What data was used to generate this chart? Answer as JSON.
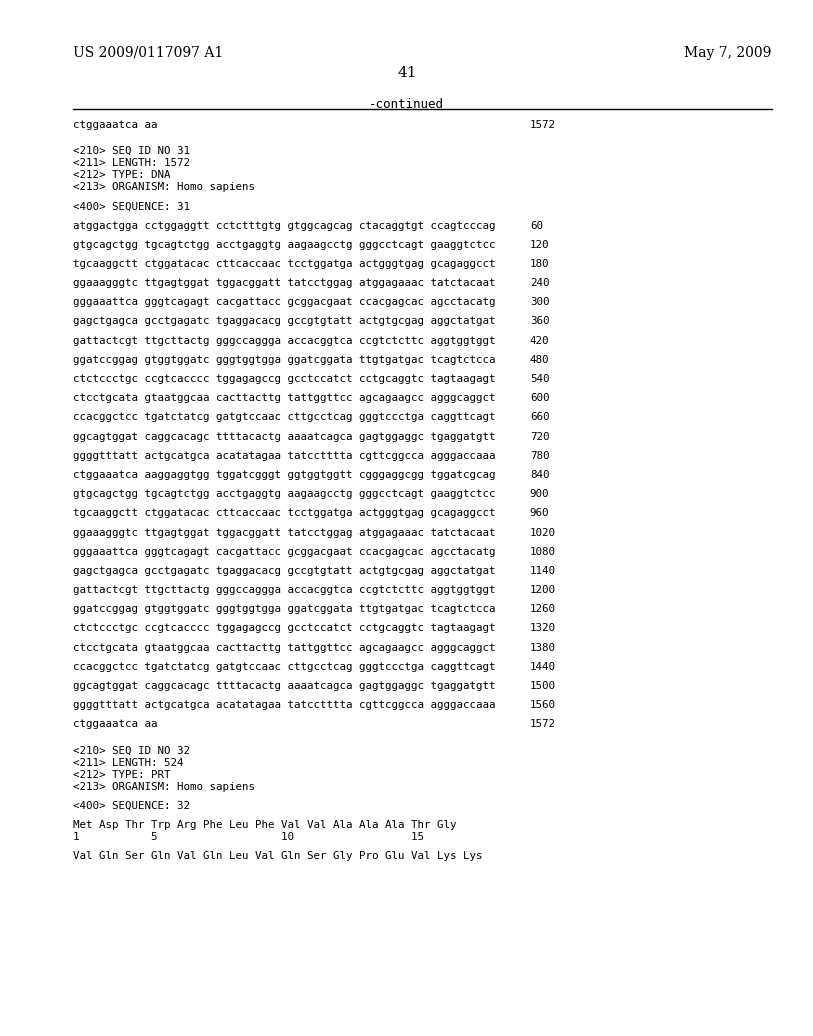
{
  "header_left": "US 2009/0117097 A1",
  "header_right": "May 7, 2009",
  "page_number": "41",
  "continued_label": "-continued",
  "background_color": "#ffffff",
  "text_color": "#000000",
  "lines": [
    {
      "text": "ctggaaatca aa",
      "num": "1572",
      "type": "seq"
    },
    {
      "text": "",
      "type": "blank"
    },
    {
      "text": "",
      "type": "blank"
    },
    {
      "text": "<210> SEQ ID NO 31",
      "type": "meta"
    },
    {
      "text": "<211> LENGTH: 1572",
      "type": "meta"
    },
    {
      "text": "<212> TYPE: DNA",
      "type": "meta"
    },
    {
      "text": "<213> ORGANISM: Homo sapiens",
      "type": "meta"
    },
    {
      "text": "",
      "type": "blank"
    },
    {
      "text": "<400> SEQUENCE: 31",
      "type": "meta"
    },
    {
      "text": "",
      "type": "blank"
    },
    {
      "text": "atggactgga cctggaggtt cctctttgtg gtggcagcag ctacaggtgt ccagtcccag",
      "num": "60",
      "type": "seq"
    },
    {
      "text": "",
      "type": "blank"
    },
    {
      "text": "gtgcagctgg tgcagtctgg acctgaggtg aagaagcctg gggcctcagt gaaggtctcc",
      "num": "120",
      "type": "seq"
    },
    {
      "text": "",
      "type": "blank"
    },
    {
      "text": "tgcaaggctt ctggatacac cttcaccaac tcctggatga actgggtgag gcagaggcct",
      "num": "180",
      "type": "seq"
    },
    {
      "text": "",
      "type": "blank"
    },
    {
      "text": "ggaaagggtc ttgagtggat tggacggatt tatcctggag atggagaaac tatctacaat",
      "num": "240",
      "type": "seq"
    },
    {
      "text": "",
      "type": "blank"
    },
    {
      "text": "gggaaattca gggtcagagt cacgattacc gcggacgaat ccacgagcac agcctacatg",
      "num": "300",
      "type": "seq"
    },
    {
      "text": "",
      "type": "blank"
    },
    {
      "text": "gagctgagca gcctgagatc tgaggacacg gccgtgtatt actgtgcgag aggctatgat",
      "num": "360",
      "type": "seq"
    },
    {
      "text": "",
      "type": "blank"
    },
    {
      "text": "gattactcgt ttgcttactg gggccaggga accacggtca ccgtctcttc aggtggtggt",
      "num": "420",
      "type": "seq"
    },
    {
      "text": "",
      "type": "blank"
    },
    {
      "text": "ggatccggag gtggtggatc gggtggtgga ggatcggata ttgtgatgac tcagtctcca",
      "num": "480",
      "type": "seq"
    },
    {
      "text": "",
      "type": "blank"
    },
    {
      "text": "ctctccctgc ccgtcacccc tggagagccg gcctccatct cctgcaggtc tagtaagagt",
      "num": "540",
      "type": "seq"
    },
    {
      "text": "",
      "type": "blank"
    },
    {
      "text": "ctcctgcata gtaatggcaa cacttacttg tattggttcc agcagaagcc agggcaggct",
      "num": "600",
      "type": "seq"
    },
    {
      "text": "",
      "type": "blank"
    },
    {
      "text": "ccacggctcc tgatctatcg gatgtccaac cttgcctcag gggtccctga caggttcagt",
      "num": "660",
      "type": "seq"
    },
    {
      "text": "",
      "type": "blank"
    },
    {
      "text": "ggcagtggat caggcacagc ttttacactg aaaatcagca gagtggaggc tgaggatgtt",
      "num": "720",
      "type": "seq"
    },
    {
      "text": "",
      "type": "blank"
    },
    {
      "text": "ggggtttatt actgcatgca acatatagaa tatcctttta cgttcggcca agggaccaaa",
      "num": "780",
      "type": "seq"
    },
    {
      "text": "",
      "type": "blank"
    },
    {
      "text": "ctggaaatca aaggaggtgg tggatcgggt ggtggtggtt cgggaggcgg tggatcgcag",
      "num": "840",
      "type": "seq"
    },
    {
      "text": "",
      "type": "blank"
    },
    {
      "text": "gtgcagctgg tgcagtctgg acctgaggtg aagaagcctg gggcctcagt gaaggtctcc",
      "num": "900",
      "type": "seq"
    },
    {
      "text": "",
      "type": "blank"
    },
    {
      "text": "tgcaaggctt ctggatacac cttcaccaac tcctggatga actgggtgag gcagaggcct",
      "num": "960",
      "type": "seq"
    },
    {
      "text": "",
      "type": "blank"
    },
    {
      "text": "ggaaagggtc ttgagtggat tggacggatt tatcctggag atggagaaac tatctacaat",
      "num": "1020",
      "type": "seq"
    },
    {
      "text": "",
      "type": "blank"
    },
    {
      "text": "gggaaattca gggtcagagt cacgattacc gcggacgaat ccacgagcac agcctacatg",
      "num": "1080",
      "type": "seq"
    },
    {
      "text": "",
      "type": "blank"
    },
    {
      "text": "gagctgagca gcctgagatc tgaggacacg gccgtgtatt actgtgcgag aggctatgat",
      "num": "1140",
      "type": "seq"
    },
    {
      "text": "",
      "type": "blank"
    },
    {
      "text": "gattactcgt ttgcttactg gggccaggga accacggtca ccgtctcttc aggtggtggt",
      "num": "1200",
      "type": "seq"
    },
    {
      "text": "",
      "type": "blank"
    },
    {
      "text": "ggatccggag gtggtggatc gggtggtgga ggatcggata ttgtgatgac tcagtctcca",
      "num": "1260",
      "type": "seq"
    },
    {
      "text": "",
      "type": "blank"
    },
    {
      "text": "ctctccctgc ccgtcacccc tggagagccg gcctccatct cctgcaggtc tagtaagagt",
      "num": "1320",
      "type": "seq"
    },
    {
      "text": "",
      "type": "blank"
    },
    {
      "text": "ctcctgcata gtaatggcaa cacttacttg tattggttcc agcagaagcc agggcaggct",
      "num": "1380",
      "type": "seq"
    },
    {
      "text": "",
      "type": "blank"
    },
    {
      "text": "ccacggctcc tgatctatcg gatgtccaac cttgcctcag gggtccctga caggttcagt",
      "num": "1440",
      "type": "seq"
    },
    {
      "text": "",
      "type": "blank"
    },
    {
      "text": "ggcagtggat caggcacagc ttttacactg aaaatcagca gagtggaggc tgaggatgtt",
      "num": "1500",
      "type": "seq"
    },
    {
      "text": "",
      "type": "blank"
    },
    {
      "text": "ggggtttatt actgcatgca acatatagaa tatcctttta cgttcggcca agggaccaaa",
      "num": "1560",
      "type": "seq"
    },
    {
      "text": "",
      "type": "blank"
    },
    {
      "text": "ctggaaatca aa",
      "num": "1572",
      "type": "seq"
    },
    {
      "text": "",
      "type": "blank"
    },
    {
      "text": "",
      "type": "blank"
    },
    {
      "text": "<210> SEQ ID NO 32",
      "type": "meta"
    },
    {
      "text": "<211> LENGTH: 524",
      "type": "meta"
    },
    {
      "text": "<212> TYPE: PRT",
      "type": "meta"
    },
    {
      "text": "<213> ORGANISM: Homo sapiens",
      "type": "meta"
    },
    {
      "text": "",
      "type": "blank"
    },
    {
      "text": "<400> SEQUENCE: 32",
      "type": "meta"
    },
    {
      "text": "",
      "type": "blank"
    },
    {
      "text": "Met Asp Thr Trp Arg Phe Leu Phe Val Val Ala Ala Ala Thr Gly",
      "type": "aa"
    },
    {
      "text": "1           5                   10                  15",
      "type": "aa_num"
    },
    {
      "text": "",
      "type": "blank"
    },
    {
      "text": "Val Gln Ser Gln Val Gln Leu Val Gln Ser Gly Pro Glu Val Lys Lys",
      "type": "aa"
    }
  ]
}
